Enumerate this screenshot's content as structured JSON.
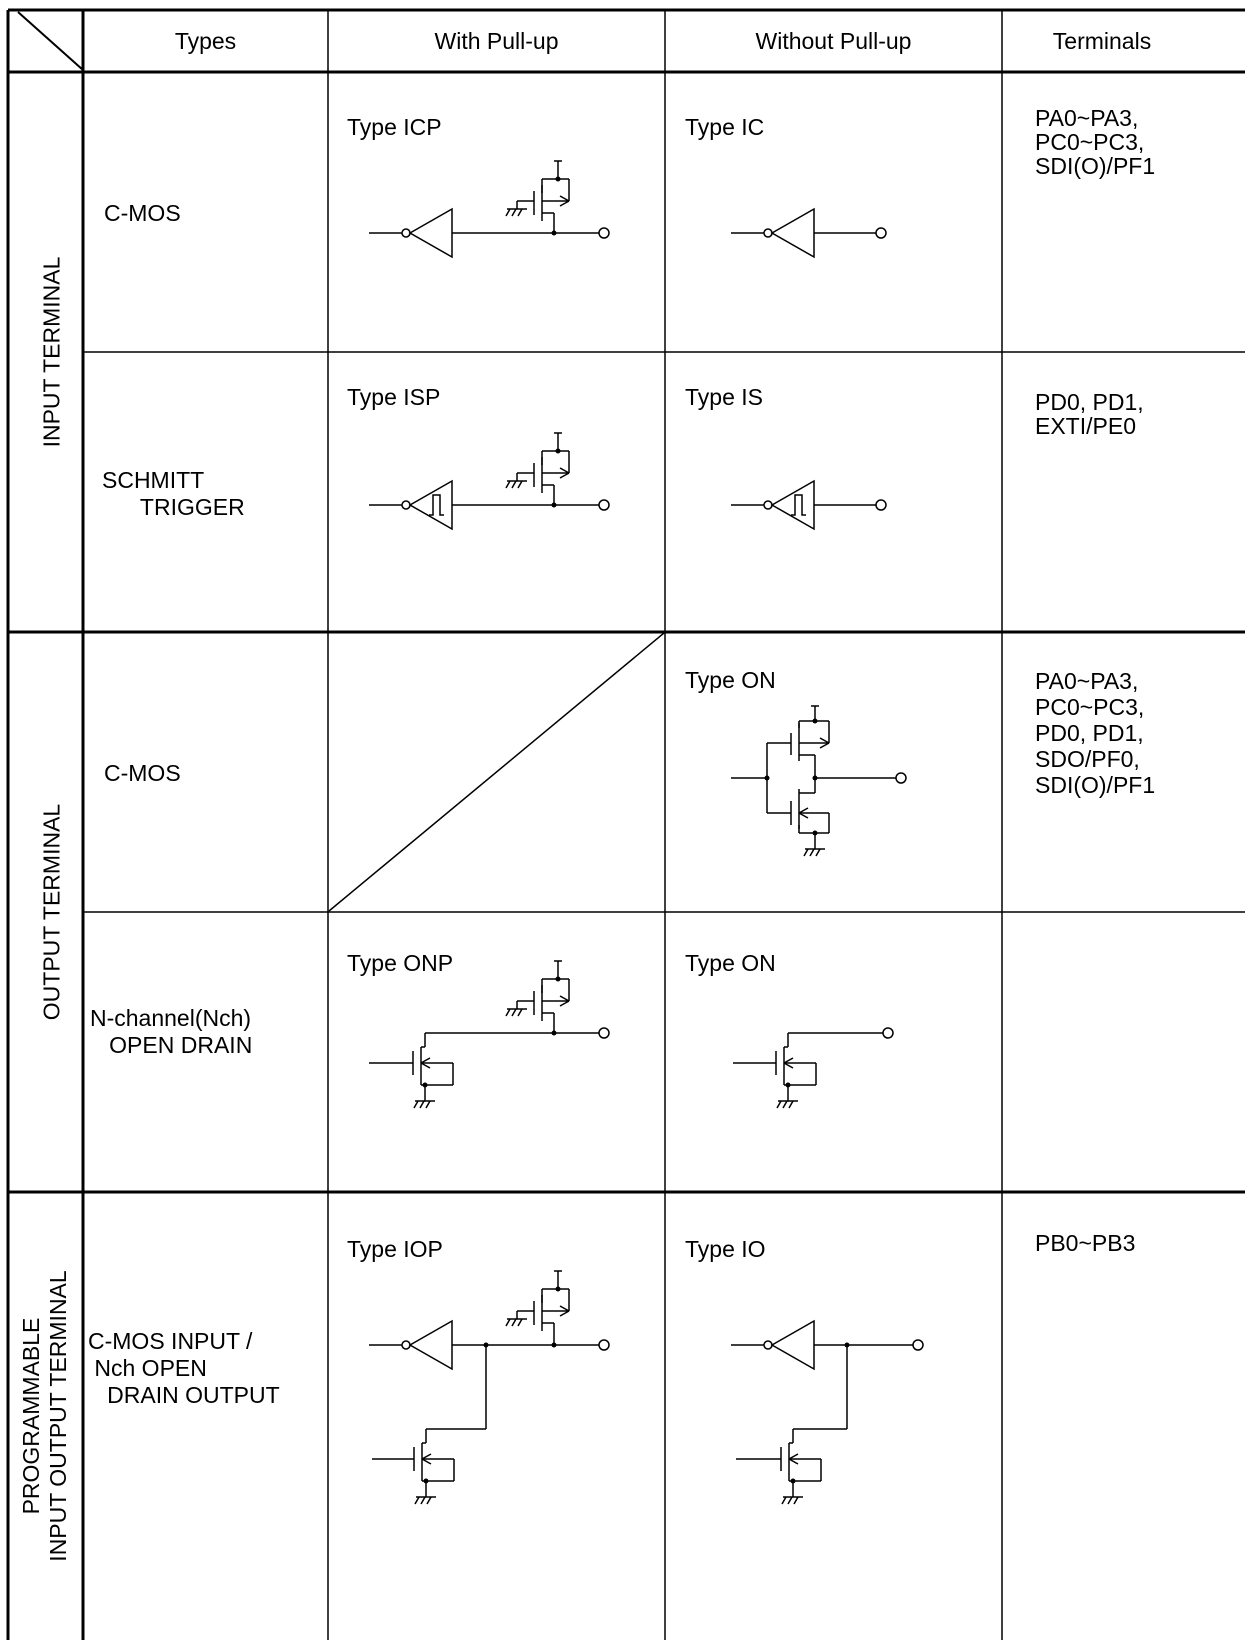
{
  "header": {
    "types": "Types",
    "with_pullup": "With Pull-up",
    "without_pullup": "Without Pull-up",
    "terminals": "Terminals"
  },
  "groups": {
    "input": "INPUT TERMINAL",
    "output": "OUTPUT TERMINAL",
    "programmable": "PROGRAMMABLE\nINPUT OUTPUT TERMINAL"
  },
  "rows": {
    "input_cmos": {
      "type": "C-MOS",
      "with_label": "Type ICP",
      "without_label": "Type IC",
      "terminals": "PA0~PA3,\nPC0~PC3,\nSDI(O)/PF1"
    },
    "input_schmitt": {
      "type": "SCHMITT\n      TRIGGER",
      "with_label": "Type ISP",
      "without_label": "Type IS",
      "terminals": "PD0, PD1,\nEXTI/PE0"
    },
    "output_cmos": {
      "type": "C-MOS",
      "without_label": "Type ON",
      "terminals": "PA0~PA3,\nPC0~PC3,\nPD0, PD1,\nSDO/PF0,\nSDI(O)/PF1"
    },
    "output_nch": {
      "type": "N-channel(Nch)\n   OPEN DRAIN",
      "with_label": "Type ONP",
      "without_label": "Type ON"
    },
    "prog_io": {
      "type": "C-MOS INPUT /\n Nch OPEN\n   DRAIN OUTPUT",
      "with_label": "Type IOP",
      "without_label": "Type IO",
      "terminals": "PB0~PB3"
    }
  }
}
